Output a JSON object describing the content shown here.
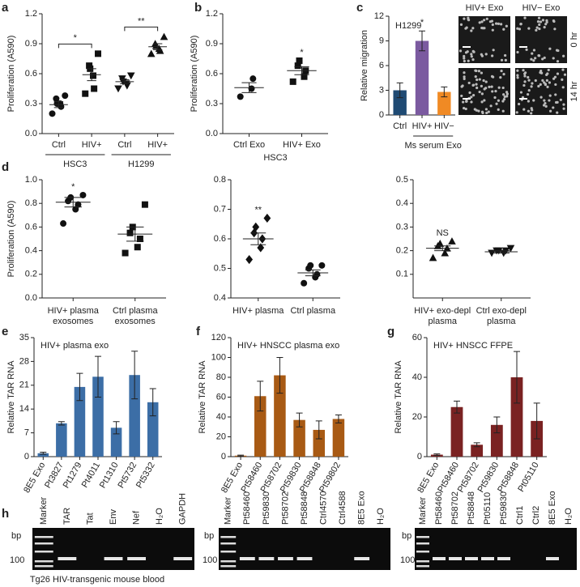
{
  "panel_labels": [
    "a",
    "b",
    "c",
    "d",
    "e",
    "f",
    "g",
    "h"
  ],
  "chart_data": [
    {
      "type": "dot",
      "ylabel": "Proliferation (A590)",
      "categories": [
        "Ctrl",
        "HIV+",
        "Ctrl",
        "HIV+"
      ],
      "group_of": [
        "HSC3",
        "HSC3",
        "H1299",
        "H1299"
      ],
      "significance": [
        "*",
        "**"
      ],
      "markers": [
        "circle",
        "square",
        "triangle-down",
        "triangle"
      ],
      "points": [
        [
          0.2,
          0.27,
          0.3,
          0.3,
          0.35,
          0.38
        ],
        [
          0.4,
          0.45,
          0.58,
          0.65,
          0.68,
          0.8
        ],
        [
          0.45,
          0.48,
          0.5,
          0.52,
          0.55,
          0.58
        ],
        [
          0.8,
          0.83,
          0.85,
          0.88,
          0.9,
          0.97
        ]
      ],
      "means": [
        0.29,
        0.59,
        0.52,
        0.87
      ],
      "errors": [
        0.03,
        0.06,
        0.02,
        0.03
      ],
      "ylim": [
        0,
        1.2
      ],
      "yticks": [
        {
          "value": 0,
          "label": "0.0"
        },
        0.3,
        0.6,
        0.9,
        1.2
      ]
    },
    {
      "type": "dot",
      "ylabel": "Proliferation (A590)",
      "categories": [
        "Ctrl Exo",
        "HIV+ Exo"
      ],
      "group_of": [
        "HSC3",
        "HSC3"
      ],
      "annotations": [
        null,
        "*"
      ],
      "markers": [
        "circle",
        "square"
      ],
      "points": [
        [
          0.37,
          0.45,
          0.55
        ],
        [
          0.52,
          0.57,
          0.63,
          0.68,
          0.73
        ]
      ],
      "means": [
        0.46,
        0.63
      ],
      "errors": [
        0.05,
        0.04
      ],
      "ylim": [
        0,
        1.2
      ],
      "yticks": [
        {
          "value": 0,
          "label": "0.0"
        },
        0.3,
        0.6,
        0.9,
        1.2
      ]
    },
    {
      "type": "bar",
      "ylabel": "Relative migration",
      "note": "H1299",
      "categories": [
        "Ctrl",
        "HIV+",
        "HIV−"
      ],
      "group_of": [
        null,
        "Ms serum Exo",
        "Ms serum Exo"
      ],
      "annotations": [
        null,
        "*",
        null
      ],
      "values": [
        3,
        9,
        2.8
      ],
      "errors": [
        0.9,
        1.2,
        0.6
      ],
      "colors": [
        "#1f4a73",
        "#7b5aa0",
        "#f08a24"
      ],
      "ylim": [
        0,
        12
      ],
      "yticks": [
        0,
        3,
        6,
        9,
        12
      ]
    },
    {
      "type": "dot",
      "ylabel": "Proliferation (A590)",
      "categories": [
        [
          "HIV+ plasma",
          "exosomes"
        ],
        [
          "Ctrl plasma",
          "exosomes"
        ]
      ],
      "annotations": [
        "*",
        null
      ],
      "markers": [
        "circle",
        "square"
      ],
      "points": [
        [
          0.63,
          0.75,
          0.79,
          0.82,
          0.85,
          0.87
        ],
        [
          0.38,
          0.43,
          0.5,
          0.55,
          0.6,
          0.79
        ]
      ],
      "means": [
        0.81,
        0.54
      ],
      "errors": [
        0.04,
        0.06
      ],
      "ylim": [
        0,
        1
      ],
      "yticks": [
        {
          "value": 0,
          "label": "0.0"
        },
        0.2,
        0.4,
        0.6,
        0.8,
        {
          "value": 1,
          "label": "1.0"
        }
      ]
    },
    {
      "type": "dot",
      "categories": [
        [
          "HIV+ plasma"
        ],
        [
          "Ctrl plasma"
        ]
      ],
      "annotations": [
        "**",
        null
      ],
      "markers": [
        "diamond",
        "circle"
      ],
      "points": [
        [
          0.53,
          0.57,
          0.6,
          0.62,
          0.64,
          0.67
        ],
        [
          0.45,
          0.47,
          0.48,
          0.5,
          0.51,
          0.51
        ]
      ],
      "means": [
        0.6,
        0.485
      ],
      "errors": [
        0.02,
        0.01
      ],
      "ylim": [
        0.4,
        0.8
      ],
      "yticks": [
        0.4,
        0.5,
        0.6,
        0.7,
        0.8
      ]
    },
    {
      "type": "dot",
      "categories": [
        [
          "HIV+ exo-depl",
          "plasma"
        ],
        [
          "Ctrl exo-depl",
          "plasma"
        ]
      ],
      "annotations": [
        "NS",
        null
      ],
      "markers": [
        "triangle",
        "triangle-down"
      ],
      "points": [
        [
          0.17,
          0.19,
          0.21,
          0.22,
          0.23,
          0.24
        ],
        [
          0.19,
          0.19,
          0.2,
          0.2,
          0.2,
          0.21
        ]
      ],
      "means": [
        0.21,
        0.195
      ],
      "errors": [
        0.01,
        0.005
      ],
      "ylim": [
        0,
        0.5
      ],
      "yticks": [
        0.1,
        0.2,
        0.3,
        0.4,
        0.5
      ]
    },
    {
      "type": "bar",
      "title": "HIV+ plasma exo",
      "ylabel": "Relative TAR RNA",
      "rotate": true,
      "categories": [
        "8E5 Exo",
        "Pt3827",
        "Pt1279",
        "Pt4011",
        "Pt1310",
        "Pt5732",
        "Pt5332"
      ],
      "values": [
        1,
        9.8,
        20.5,
        23.5,
        8.5,
        24,
        16
      ],
      "errors": [
        0.3,
        0.5,
        4,
        6,
        1.8,
        7,
        4
      ],
      "color": "#3c6ea6",
      "ylim": [
        0,
        35
      ],
      "yticks": [
        0,
        7,
        14,
        21,
        28,
        35
      ]
    },
    {
      "type": "bar",
      "title": "HIV+ HNSCC plasma exo",
      "ylabel": "Relative TAR RNA",
      "rotate": true,
      "categories": [
        "8E5 Exo",
        "Pt58460",
        "Pt58702",
        "Pt59830",
        "Pt58848",
        "Pt59802"
      ],
      "values": [
        1,
        61,
        82,
        37,
        27,
        38
      ],
      "errors": [
        0.5,
        15,
        18,
        7,
        9,
        4
      ],
      "color": "#a85a14",
      "ylim": [
        0,
        120
      ],
      "yticks": [
        0,
        20,
        40,
        60,
        80,
        100,
        120
      ]
    },
    {
      "type": "bar",
      "title": "HIV+ HNSCC FFPE",
      "ylabel": "Relative TAR RNA",
      "rotate": true,
      "categories": [
        "8E5 Exo",
        "Pt58460",
        "Pt58702",
        "Pt59830",
        "Pt58848",
        "Pt05110"
      ],
      "values": [
        1,
        25,
        6,
        16,
        40,
        18
      ],
      "errors": [
        0.4,
        3,
        1,
        4,
        13,
        9
      ],
      "color": "#7a2222",
      "ylim": [
        0,
        60
      ],
      "yticks": [
        0,
        20,
        40,
        60
      ]
    }
  ],
  "micrographs": {
    "columns": [
      "HIV+ Exo",
      "HIV− Exo"
    ],
    "rows": [
      "0 hr",
      "14 hr"
    ]
  },
  "gels": [
    {
      "unit": "bp",
      "size": 100,
      "lanes": [
        "Marker",
        "TAR",
        "Tat",
        "Env",
        "Nef",
        "H₂O",
        "GAPDH"
      ],
      "caption": "Tg26 HIV-transgenic mouse blood"
    },
    {
      "unit": "bp",
      "size": 100,
      "lanes": [
        "Marker",
        "Pt58460",
        "Pt59830",
        "Pt58702",
        "Pt58848",
        "Ctrl4570",
        "Ctrl4588",
        "8E5 Exo",
        "H₂O"
      ]
    },
    {
      "unit": "bp",
      "size": 100,
      "lanes": [
        "Marker",
        "Pt58460",
        "Pt58702",
        "Pt58848",
        "Pt05110",
        "Pt59830",
        "Ctrl1",
        "Ctrl2",
        "8E5 Exo",
        "H₂O"
      ]
    }
  ]
}
